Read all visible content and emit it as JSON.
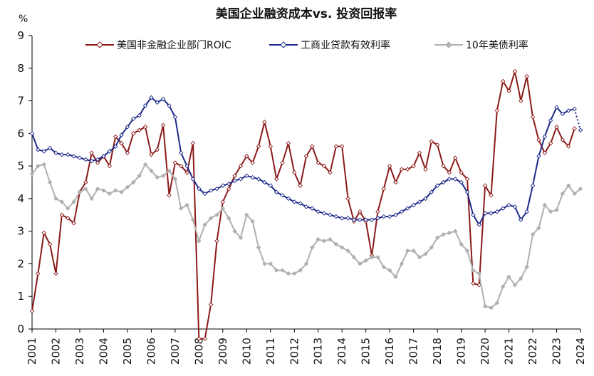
{
  "chart_data": {
    "type": "line",
    "title": "美国企业融资成本vs. 投资回报率",
    "ylabel": "%",
    "xlabel": "",
    "ylim": [
      0,
      9
    ],
    "xlim": [
      2001,
      2024
    ],
    "yticks": [
      0,
      1,
      2,
      3,
      4,
      5,
      6,
      7,
      8,
      9
    ],
    "xticks": [
      "2001",
      "2002",
      "2003",
      "2004",
      "2005",
      "2006",
      "2007",
      "2008",
      "2009",
      "2010",
      "2011",
      "2012",
      "2013",
      "2014",
      "2015",
      "2016",
      "2017",
      "2018",
      "2019",
      "2020",
      "2021",
      "2022",
      "2023",
      "2024"
    ],
    "grid": false,
    "legend_position": "top",
    "series": [
      {
        "name": "美国非金融企业部门ROIC",
        "color": "#8b1a1a",
        "marker": "diamond-open",
        "x": [
          2001.0,
          2001.25,
          2001.5,
          2001.75,
          2002.0,
          2002.25,
          2002.5,
          2002.75,
          2003.0,
          2003.25,
          2003.5,
          2003.75,
          2004.0,
          2004.25,
          2004.5,
          2004.75,
          2005.0,
          2005.25,
          2005.5,
          2005.75,
          2006.0,
          2006.25,
          2006.5,
          2006.75,
          2007.0,
          2007.25,
          2007.5,
          2007.75,
          2008.0,
          2008.25,
          2008.5,
          2008.75,
          2009.0,
          2009.25,
          2009.5,
          2009.75,
          2010.0,
          2010.25,
          2010.5,
          2010.75,
          2011.0,
          2011.25,
          2011.5,
          2011.75,
          2012.0,
          2012.25,
          2012.5,
          2012.75,
          2013.0,
          2013.25,
          2013.5,
          2013.75,
          2014.0,
          2014.25,
          2014.5,
          2014.75,
          2015.0,
          2015.25,
          2015.5,
          2015.75,
          2016.0,
          2016.25,
          2016.5,
          2016.75,
          2017.0,
          2017.25,
          2017.5,
          2017.75,
          2018.0,
          2018.25,
          2018.5,
          2018.75,
          2019.0,
          2019.25,
          2019.5,
          2019.75,
          2020.0,
          2020.25,
          2020.5,
          2020.75,
          2021.0,
          2021.25,
          2021.5,
          2021.75,
          2022.0,
          2022.25,
          2022.5,
          2022.75,
          2023.0,
          2023.25,
          2023.5,
          2023.75
        ],
        "y": [
          0.55,
          1.7,
          2.95,
          2.6,
          1.7,
          3.5,
          3.4,
          3.25,
          4.2,
          4.5,
          5.4,
          5.1,
          5.3,
          5.0,
          5.9,
          5.7,
          5.4,
          6.0,
          6.1,
          6.2,
          5.35,
          5.5,
          6.25,
          4.1,
          5.1,
          5.0,
          4.8,
          5.7,
          -0.3,
          -0.3,
          0.75,
          2.7,
          3.9,
          4.3,
          4.7,
          5.0,
          5.3,
          5.1,
          5.6,
          6.35,
          5.6,
          4.6,
          5.1,
          5.7,
          4.8,
          4.4,
          5.3,
          5.6,
          5.1,
          5.0,
          4.8,
          5.6,
          5.6,
          4.0,
          3.3,
          3.6,
          3.3,
          2.25,
          3.6,
          4.3,
          5.0,
          4.5,
          4.9,
          4.9,
          5.0,
          5.4,
          4.9,
          5.75,
          5.65,
          5.0,
          4.8,
          5.25,
          4.8,
          4.6,
          1.4,
          1.35,
          4.4,
          4.1,
          6.7,
          7.6,
          7.3,
          7.9,
          7.0,
          7.75,
          6.5,
          5.8,
          5.4,
          5.7,
          6.2,
          5.8,
          5.6,
          6.15
        ]
      },
      {
        "name": "工商业贷款有效利率",
        "color": "#1c2a8a",
        "marker": "diamond-open",
        "x": [
          2001.0,
          2001.25,
          2001.5,
          2001.75,
          2002.0,
          2002.25,
          2002.5,
          2002.75,
          2003.0,
          2003.25,
          2003.5,
          2003.75,
          2004.0,
          2004.25,
          2004.5,
          2004.75,
          2005.0,
          2005.25,
          2005.5,
          2005.75,
          2006.0,
          2006.25,
          2006.5,
          2006.75,
          2007.0,
          2007.25,
          2007.5,
          2007.75,
          2008.0,
          2008.25,
          2008.5,
          2008.75,
          2009.0,
          2009.25,
          2009.5,
          2009.75,
          2010.0,
          2010.25,
          2010.5,
          2010.75,
          2011.0,
          2011.25,
          2011.5,
          2011.75,
          2012.0,
          2012.25,
          2012.5,
          2012.75,
          2013.0,
          2013.25,
          2013.5,
          2013.75,
          2014.0,
          2014.25,
          2014.5,
          2014.75,
          2015.0,
          2015.25,
          2015.5,
          2015.75,
          2016.0,
          2016.25,
          2016.5,
          2016.75,
          2017.0,
          2017.25,
          2017.5,
          2017.75,
          2018.0,
          2018.25,
          2018.5,
          2018.75,
          2019.0,
          2019.25,
          2019.5,
          2019.75,
          2020.0,
          2020.25,
          2020.5,
          2020.75,
          2021.0,
          2021.25,
          2021.5,
          2021.75,
          2022.0,
          2022.25,
          2022.5,
          2022.75,
          2023.0,
          2023.25,
          2023.5,
          2023.75,
          2024.0
        ],
        "y": [
          6.0,
          5.5,
          5.45,
          5.55,
          5.4,
          5.35,
          5.35,
          5.3,
          5.25,
          5.2,
          5.15,
          5.2,
          5.3,
          5.45,
          5.6,
          5.95,
          6.2,
          6.45,
          6.55,
          6.85,
          7.1,
          6.95,
          7.05,
          6.85,
          6.5,
          5.4,
          5.0,
          4.6,
          4.3,
          4.15,
          4.25,
          4.3,
          4.4,
          4.45,
          4.55,
          4.6,
          4.7,
          4.65,
          4.6,
          4.5,
          4.4,
          4.2,
          4.1,
          4.0,
          3.9,
          3.85,
          3.75,
          3.7,
          3.6,
          3.55,
          3.5,
          3.45,
          3.4,
          3.4,
          3.35,
          3.35,
          3.35,
          3.35,
          3.4,
          3.45,
          3.45,
          3.5,
          3.6,
          3.7,
          3.8,
          3.9,
          4.0,
          4.2,
          4.4,
          4.5,
          4.6,
          4.6,
          4.5,
          4.2,
          3.5,
          3.2,
          3.55,
          3.55,
          3.6,
          3.7,
          3.8,
          3.75,
          3.35,
          3.6,
          4.4,
          5.3,
          5.9,
          6.4,
          6.8,
          6.6,
          6.7,
          6.75,
          6.1
        ]
      },
      {
        "name": "10年美债利率",
        "color": "#b0b0b0",
        "marker": "diamond-filled",
        "x": [
          2001.0,
          2001.25,
          2001.5,
          2001.75,
          2002.0,
          2002.25,
          2002.5,
          2002.75,
          2003.0,
          2003.25,
          2003.5,
          2003.75,
          2004.0,
          2004.25,
          2004.5,
          2004.75,
          2005.0,
          2005.25,
          2005.5,
          2005.75,
          2006.0,
          2006.25,
          2006.5,
          2006.75,
          2007.0,
          2007.25,
          2007.5,
          2007.75,
          2008.0,
          2008.25,
          2008.5,
          2008.75,
          2009.0,
          2009.25,
          2009.5,
          2009.75,
          2010.0,
          2010.25,
          2010.5,
          2010.75,
          2011.0,
          2011.25,
          2011.5,
          2011.75,
          2012.0,
          2012.25,
          2012.5,
          2012.75,
          2013.0,
          2013.25,
          2013.5,
          2013.75,
          2014.0,
          2014.25,
          2014.5,
          2014.75,
          2015.0,
          2015.25,
          2015.5,
          2015.75,
          2016.0,
          2016.25,
          2016.5,
          2016.75,
          2017.0,
          2017.25,
          2017.5,
          2017.75,
          2018.0,
          2018.25,
          2018.5,
          2018.75,
          2019.0,
          2019.25,
          2019.5,
          2019.75,
          2020.0,
          2020.25,
          2020.5,
          2020.75,
          2021.0,
          2021.25,
          2021.5,
          2021.75,
          2022.0,
          2022.25,
          2022.5,
          2022.75,
          2023.0,
          2023.25,
          2023.5,
          2023.75,
          2024.0
        ],
        "y": [
          4.75,
          5.0,
          5.05,
          4.5,
          4.0,
          3.9,
          3.7,
          3.9,
          4.2,
          4.3,
          4.0,
          4.3,
          4.25,
          4.15,
          4.25,
          4.2,
          4.35,
          4.5,
          4.7,
          5.05,
          4.85,
          4.65,
          4.7,
          4.85,
          4.6,
          3.7,
          3.8,
          3.35,
          2.7,
          3.2,
          3.4,
          3.5,
          3.7,
          3.4,
          3.0,
          2.8,
          3.5,
          3.3,
          2.5,
          2.0,
          2.0,
          1.8,
          1.8,
          1.7,
          1.7,
          1.8,
          2.0,
          2.5,
          2.75,
          2.7,
          2.75,
          2.6,
          2.5,
          2.4,
          2.2,
          2.0,
          2.1,
          2.2,
          2.2,
          1.9,
          1.8,
          1.6,
          2.0,
          2.4,
          2.4,
          2.2,
          2.3,
          2.5,
          2.8,
          2.9,
          2.95,
          3.0,
          2.6,
          2.4,
          1.8,
          1.7,
          0.7,
          0.65,
          0.8,
          1.3,
          1.6,
          1.35,
          1.55,
          1.9,
          2.9,
          3.1,
          3.8,
          3.6,
          3.65,
          4.15,
          4.4,
          4.15,
          4.3
        ]
      }
    ]
  }
}
